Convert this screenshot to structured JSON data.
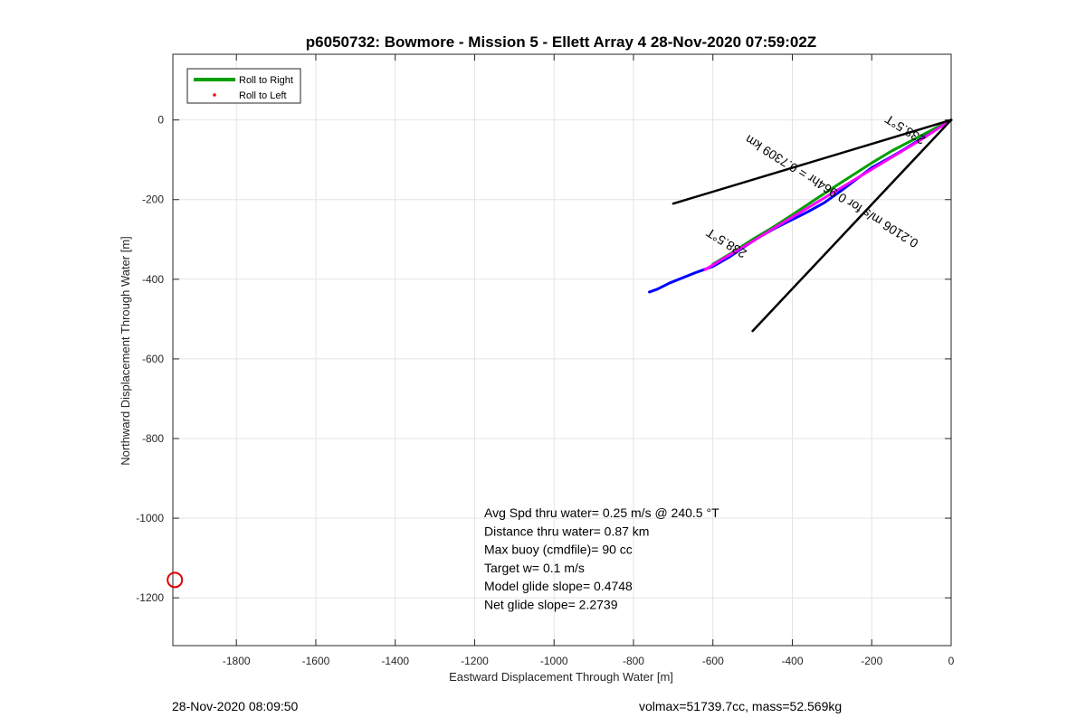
{
  "chart_data": {
    "type": "line",
    "title": "p6050732: Bowmore - Mission 5 - Ellett Array 4 28-Nov-2020 07:59:02Z",
    "xlabel": "Eastward Displacement Through Water [m]",
    "ylabel": "Northward Displacement Through Water [m]",
    "xlim": [
      -1960,
      0
    ],
    "ylim": [
      -1320,
      165
    ],
    "xticks": [
      -1800,
      -1600,
      -1400,
      -1200,
      -1000,
      -800,
      -600,
      -400,
      -200,
      0
    ],
    "yticks": [
      -1200,
      -1000,
      -800,
      -600,
      -400,
      -200,
      0
    ],
    "grid": true,
    "legend_position": "top-left",
    "legend": [
      {
        "label": "Roll to Right",
        "color": "#00a000",
        "style": "line"
      },
      {
        "label": "Roll to Left",
        "color": "#ff0000",
        "style": "dot"
      }
    ],
    "series": [
      {
        "color": "#0000ff",
        "x": [
          -760,
          -740,
          -710,
          -680,
          -640,
          -600,
          -560,
          -520,
          -480,
          -440,
          -400,
          -360,
          -320,
          -280,
          -240,
          -200,
          -160,
          -120,
          -80,
          -40,
          0
        ],
        "y": [
          -432,
          -425,
          -410,
          -398,
          -382,
          -368,
          -345,
          -318,
          -292,
          -270,
          -250,
          -230,
          -208,
          -180,
          -150,
          -120,
          -98,
          -75,
          -50,
          -25,
          0
        ]
      },
      {
        "color": "#00a000",
        "x": [
          -600,
          -550,
          -500,
          -450,
          -400,
          -350,
          -300,
          -250,
          -200,
          -150,
          -100,
          -50,
          0
        ],
        "y": [
          -362,
          -332,
          -300,
          -270,
          -238,
          -205,
          -172,
          -140,
          -108,
          -78,
          -52,
          -26,
          0
        ]
      },
      {
        "color": "#ff00ff",
        "x": [
          -620,
          -560,
          -500,
          -440,
          -380,
          -320,
          -260,
          -200,
          -140,
          -80,
          0
        ],
        "y": [
          -376,
          -340,
          -305,
          -268,
          -232,
          -196,
          -160,
          -124,
          -88,
          -52,
          0
        ]
      },
      {
        "color": "#000000",
        "x": [
          -700,
          0
        ],
        "y": [
          -210,
          0
        ]
      },
      {
        "color": "#000000",
        "x": [
          -500,
          0
        ],
        "y": [
          -530,
          0
        ]
      }
    ],
    "track_labels": [
      {
        "text": "238.5°T",
        "x": -560,
        "y": -300,
        "angle": 32
      },
      {
        "text": "0.2106 m/s for 0.964hr = 0.7309 km",
        "x": -295,
        "y": -170,
        "angle": 32
      },
      {
        "text": "238.5°T",
        "x": -110,
        "y": -15,
        "angle": 32
      }
    ],
    "markers": [
      {
        "type": "circle",
        "color": "#e00000",
        "x": -1955,
        "y": -1155
      }
    ],
    "annotations": [
      "Avg Spd thru water=  0.25 m/s @ 240.5 °T",
      "Distance thru water=  0.87 km",
      "Max buoy (cmdfile)= 90 cc",
      "Target w= 0.1 m/s",
      "Model glide slope= 0.4748",
      "Net glide slope= 2.2739"
    ]
  },
  "footer": {
    "timestamp": "28-Nov-2020 08:09:50",
    "params": "volmax=51739.7cc, mass=52.569kg"
  }
}
